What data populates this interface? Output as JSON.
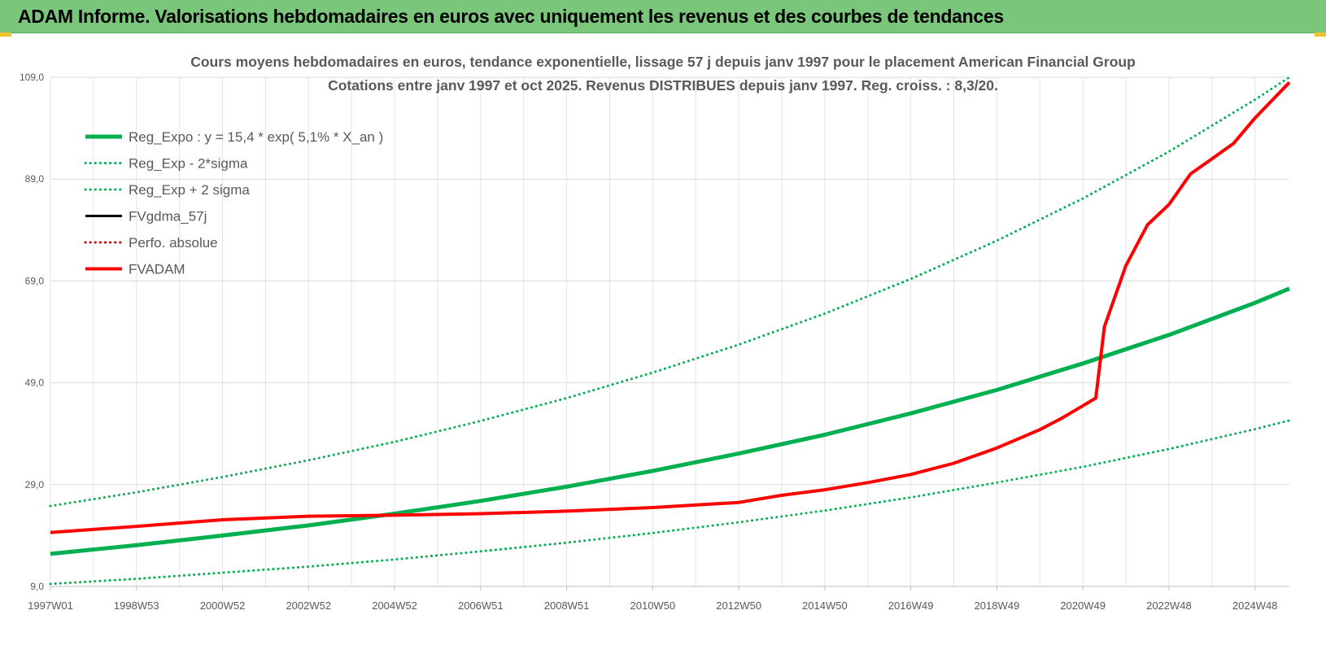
{
  "header": {
    "title": "ADAM Informe. Valorisations hebdomadaires en euros avec uniquement les revenus et des courbes de tendances"
  },
  "colors": {
    "header_bg": "#7ac67a",
    "green": "#00b050",
    "black": "#000000",
    "red": "#ff0000",
    "dark_red": "#c00000"
  },
  "chart_data": {
    "type": "line",
    "title": "Cours moyens hebdomadaires en euros, tendance exponentielle, lissage 57 j depuis janv 1997 pour le placement American Financial Group",
    "subtitle": "Cotations entre janv 1997 et oct 2025. Revenus DISTRIBUES depuis janv 1997. Reg. croiss. : 8,3/20.",
    "xlabel": "",
    "ylabel": "",
    "ylim": [
      9,
      109
    ],
    "yticks": [
      "9,0",
      "29,0",
      "49,0",
      "69,0",
      "89,0",
      "109,0"
    ],
    "xlim": [
      1997.0,
      2025.8
    ],
    "xticks": [
      {
        "label": "1997W01",
        "x": 1997.0
      },
      {
        "label": "1998W53",
        "x": 1999.0
      },
      {
        "label": "2000W52",
        "x": 2001.0
      },
      {
        "label": "2002W52",
        "x": 2003.0
      },
      {
        "label": "2004W52",
        "x": 2005.0
      },
      {
        "label": "2006W51",
        "x": 2007.0
      },
      {
        "label": "2008W51",
        "x": 2009.0
      },
      {
        "label": "2010W50",
        "x": 2011.0
      },
      {
        "label": "2012W50",
        "x": 2013.0
      },
      {
        "label": "2014W50",
        "x": 2015.0
      },
      {
        "label": "2016W49",
        "x": 2017.0
      },
      {
        "label": "2018W49",
        "x": 2019.0
      },
      {
        "label": "2020W49",
        "x": 2021.0
      },
      {
        "label": "2022W48",
        "x": 2023.0
      },
      {
        "label": "2024W48",
        "x": 2025.0
      }
    ],
    "grid": true,
    "legend_position": "top-left",
    "series": [
      {
        "name": "Reg_Expo : y = 15,4 * exp( 5,1% *  X_an )",
        "color": "#00b050",
        "style": "solid",
        "width": 5,
        "x": [
          1997.0,
          1999.0,
          2001.0,
          2003.0,
          2005.0,
          2007.0,
          2009.0,
          2011.0,
          2013.0,
          2015.0,
          2017.0,
          2019.0,
          2021.0,
          2023.0,
          2025.0,
          2025.8
        ],
        "y": [
          15.4,
          17.1,
          19.0,
          21.0,
          23.3,
          25.8,
          28.6,
          31.7,
          35.1,
          38.8,
          43.0,
          47.6,
          52.8,
          58.4,
          64.7,
          67.5
        ]
      },
      {
        "name": "Reg_Exp - 2*sigma",
        "color": "#00b050",
        "style": "dotted",
        "width": 3,
        "x": [
          1997.0,
          1999.0,
          2001.0,
          2003.0,
          2005.0,
          2007.0,
          2009.0,
          2011.0,
          2013.0,
          2015.0,
          2017.0,
          2019.0,
          2021.0,
          2023.0,
          2025.0,
          2025.8
        ],
        "y": [
          9.5,
          10.5,
          11.7,
          12.9,
          14.3,
          15.9,
          17.6,
          19.5,
          21.6,
          23.9,
          26.5,
          29.4,
          32.5,
          36.0,
          39.9,
          41.6
        ]
      },
      {
        "name": "Reg_Exp + 2 sigma",
        "color": "#00b050",
        "style": "dotted",
        "width": 3,
        "x": [
          1997.0,
          1999.0,
          2001.0,
          2003.0,
          2005.0,
          2007.0,
          2009.0,
          2011.0,
          2013.0,
          2015.0,
          2017.0,
          2019.0,
          2021.0,
          2023.0,
          2025.0,
          2025.8
        ],
        "y": [
          24.8,
          27.5,
          30.5,
          33.8,
          37.4,
          41.5,
          46.0,
          51.0,
          56.5,
          62.6,
          69.4,
          76.9,
          85.2,
          94.4,
          104.6,
          109.0
        ]
      },
      {
        "name": "FVgdma_57j",
        "color": "#000000",
        "style": "solid",
        "width": 2,
        "x": [
          1997.0,
          1999.0,
          2001.0,
          2003.0,
          2005.0,
          2007.0,
          2009.0,
          2011.0,
          2013.0,
          2014.0,
          2015.0,
          2016.0,
          2017.0,
          2018.0,
          2019.0,
          2020.0,
          2020.5,
          2021.0,
          2021.3,
          2021.5,
          2022.0,
          2022.5,
          2023.0,
          2023.5,
          2024.0,
          2024.5,
          2025.0,
          2025.8
        ],
        "y": [
          19.6,
          20.8,
          22.1,
          22.8,
          23.0,
          23.3,
          23.8,
          24.5,
          25.5,
          26.9,
          28.0,
          29.4,
          31.0,
          33.2,
          36.2,
          39.8,
          42.0,
          44.5,
          46.0,
          60.0,
          72.0,
          80.0,
          84.0,
          90.0,
          93.0,
          96.0,
          101.0,
          108.0
        ]
      },
      {
        "name": "Perfo. absolue",
        "color": "#c00000",
        "style": "dotted",
        "width": 2,
        "x": [],
        "y": []
      },
      {
        "name": "FVADAM",
        "color": "#ff0000",
        "style": "solid",
        "width": 4,
        "x": [
          1997.0,
          1999.0,
          2001.0,
          2003.0,
          2005.0,
          2007.0,
          2009.0,
          2011.0,
          2013.0,
          2014.0,
          2015.0,
          2016.0,
          2017.0,
          2018.0,
          2019.0,
          2020.0,
          2020.5,
          2021.0,
          2021.3,
          2021.5,
          2022.0,
          2022.5,
          2023.0,
          2023.5,
          2024.0,
          2024.5,
          2025.0,
          2025.8
        ],
        "y": [
          19.6,
          20.8,
          22.1,
          22.8,
          23.0,
          23.3,
          23.8,
          24.5,
          25.5,
          26.9,
          28.0,
          29.4,
          31.0,
          33.2,
          36.2,
          39.8,
          42.0,
          44.5,
          46.0,
          60.0,
          72.0,
          80.0,
          84.0,
          90.0,
          93.0,
          96.0,
          101.0,
          108.0
        ]
      }
    ]
  }
}
